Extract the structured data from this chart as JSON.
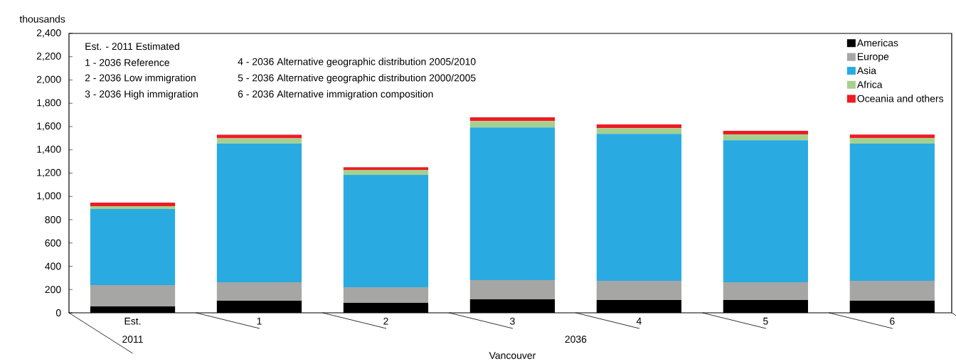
{
  "chart_data": {
    "type": "bar",
    "stacked": true,
    "ylabel": "thousands",
    "xlabel": "Vancouver",
    "categories": [
      "Est.",
      "1",
      "2",
      "3",
      "4",
      "5",
      "6"
    ],
    "series": [
      {
        "name": "Americas",
        "color": "#000000",
        "values": [
          55,
          104,
          85,
          116,
          110,
          110,
          104
        ]
      },
      {
        "name": "Europe",
        "color": "#a6a6a5",
        "values": [
          183,
          158,
          135,
          165,
          165,
          152,
          171
        ]
      },
      {
        "name": "Asia",
        "color": "#29abe2",
        "values": [
          653,
          1193,
          964,
          1312,
          1263,
          1221,
          1178
        ]
      },
      {
        "name": "Africa",
        "color": "#a8d08d",
        "values": [
          25,
          45,
          43,
          55,
          49,
          49,
          49
        ]
      },
      {
        "name": "Oceania and others",
        "color": "#ed1c24",
        "values": [
          30,
          30,
          24,
          31,
          31,
          31,
          30
        ]
      }
    ],
    "ylim": [
      0,
      2400
    ],
    "yticks": [
      0,
      {
        "value": 200,
        "label": "200"
      },
      {
        "value": 400,
        "label": "400"
      },
      {
        "value": 600,
        "label": "600"
      },
      {
        "value": 800,
        "label": "800"
      },
      {
        "value": 1000,
        "label": "1,000"
      },
      {
        "value": 1200,
        "label": "1,200"
      },
      {
        "value": 1400,
        "label": "1,400"
      },
      {
        "value": 1600,
        "label": "1,600"
      },
      {
        "value": 1800,
        "label": "1,800"
      },
      {
        "value": 2000,
        "label": "2,000"
      },
      {
        "value": 2200,
        "label": "2,200"
      },
      {
        "value": 2400,
        "label": "2,400"
      }
    ],
    "legend": "top right",
    "annotations": [
      "Est. - 2011 Estimated",
      "1  -  2036 Reference",
      "2  -  2036 Low immigration",
      "3  -  2036 High immigration",
      "4  -  2036 Alternative geographic distribution 2005/2010",
      "5  -  2036 Alternative geographic distribution 2000/2005",
      "6  -  2036 Alternative immigration composition",
      "2011",
      "2036"
    ]
  }
}
